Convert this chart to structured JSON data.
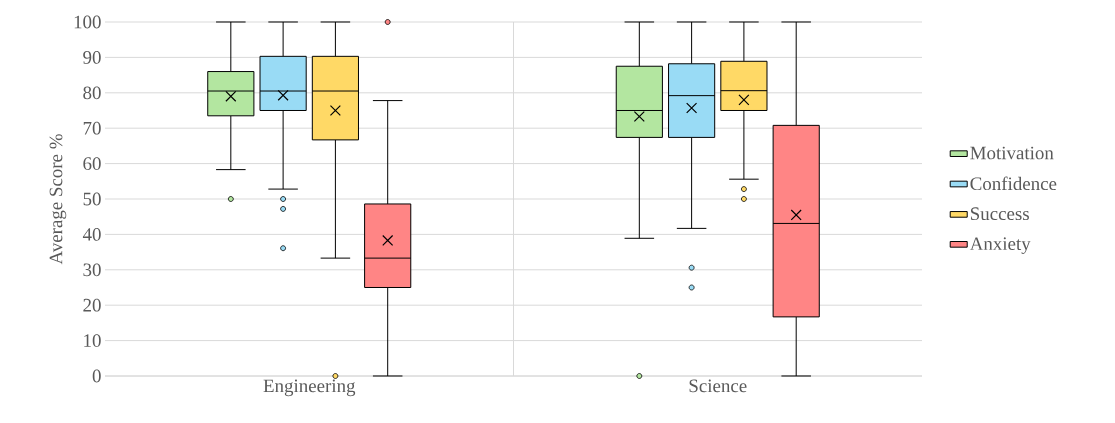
{
  "chart_data": {
    "type": "box",
    "ylabel": "Average Score %",
    "categories": [
      "Engineering",
      "Science"
    ],
    "ylim": [
      0,
      100
    ],
    "yticks": [
      0,
      10,
      20,
      30,
      40,
      50,
      60,
      70,
      80,
      90,
      100
    ],
    "grid": "y",
    "legend": "right",
    "marker": "cross",
    "series": [
      {
        "name": "Motivation",
        "color": "#b3e6a0",
        "boxes": [
          {
            "low": 58.3,
            "q1": 73.5,
            "median": 80.5,
            "q3": 86,
            "high": 100,
            "mean": 79,
            "outliers": [
              50
            ]
          },
          {
            "low": 38.9,
            "q1": 67.4,
            "median": 75,
            "q3": 87.5,
            "high": 100,
            "mean": 73.3,
            "outliers": [
              0
            ]
          }
        ]
      },
      {
        "name": "Confidence",
        "color": "#99dbf5",
        "boxes": [
          {
            "low": 52.8,
            "q1": 75,
            "median": 80.5,
            "q3": 90.3,
            "high": 100,
            "mean": 79.3,
            "outliers": [
              50,
              47.2,
              36.1
            ]
          },
          {
            "low": 41.7,
            "q1": 67.4,
            "median": 79.2,
            "q3": 88.2,
            "high": 100,
            "mean": 75.7,
            "outliers": [
              30.6,
              25
            ]
          }
        ]
      },
      {
        "name": "Success",
        "color": "#ffd966",
        "boxes": [
          {
            "low": 33.3,
            "q1": 66.7,
            "median": 80.5,
            "q3": 90.3,
            "high": 100,
            "mean": 75,
            "outliers": [
              0
            ]
          },
          {
            "low": 55.6,
            "q1": 75,
            "median": 80.6,
            "q3": 88.9,
            "high": 100,
            "mean": 78,
            "outliers": [
              52.8,
              50
            ]
          }
        ]
      },
      {
        "name": "Anxiety",
        "color": "#ff8585",
        "boxes": [
          {
            "low": 0,
            "q1": 25,
            "median": 33.3,
            "q3": 48.6,
            "high": 77.8,
            "mean": 38.3,
            "outliers": [
              100
            ]
          },
          {
            "low": 0,
            "q1": 16.7,
            "median": 43.1,
            "q3": 70.8,
            "high": 100,
            "mean": 45.5
          }
        ]
      }
    ]
  }
}
